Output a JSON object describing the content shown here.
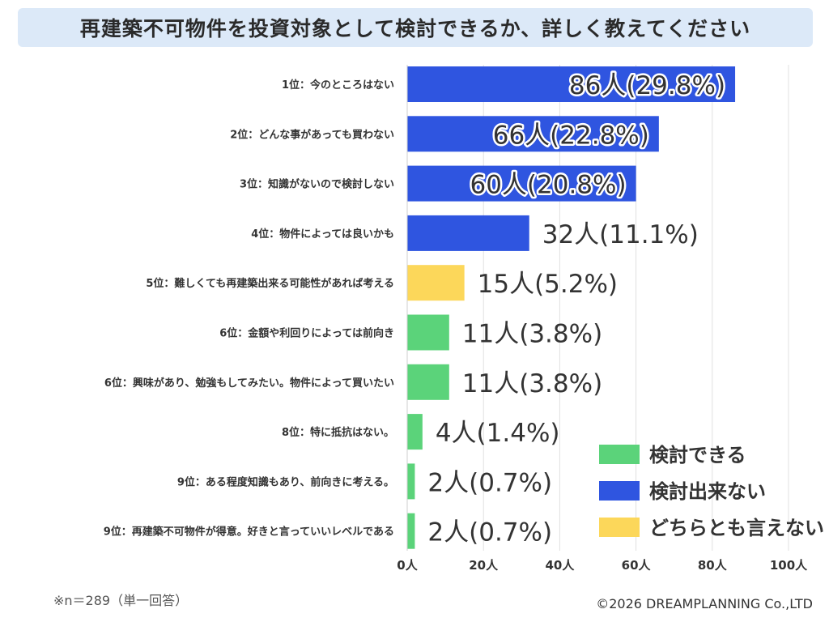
{
  "title": "再建築不可物件を投資対象として検討できるか、詳しく教えてください",
  "note": "※n＝289（単一回答）",
  "copyright": "©2026 DREAMPLANNING Co.,LTD",
  "colors": {
    "検討できる": "#5bd37a",
    "検討出来ない": "#2f55e0",
    "どちらとも言えない": "#fcd75a"
  },
  "chart_data": {
    "type": "bar",
    "orientation": "horizontal",
    "categories": [
      "1位：今のところはない",
      "2位：どんな事があっても買わない",
      "3位：知識がないので検討しない",
      "4位：物件によっては良いかも",
      "5位：難しくても再建築出来る可能性があれば考える",
      "6位：金額や利回りによっては前向き",
      "6位：興味があり、勉強もしてみたい。物件によって買いたい",
      "8位：特に抵抗はない。",
      "9位：ある程度知識もあり、前向きに考える。",
      "9位：再建築不可物件が得意。好きと言っていいレベルである"
    ],
    "values": [
      86,
      66,
      60,
      32,
      15,
      11,
      11,
      4,
      2,
      2
    ],
    "value_labels": [
      "86人(29.8%)",
      "66人(22.8%)",
      "60人(20.8%)",
      "32人(11.1%)",
      "15人(5.2%)",
      "11人(3.8%)",
      "11人(3.8%)",
      "4人(1.4%)",
      "2人(0.7%)",
      "2人(0.7%)"
    ],
    "groups": [
      "検討出来ない",
      "検討出来ない",
      "検討出来ない",
      "検討出来ない",
      "どちらとも言えない",
      "検討できる",
      "検討できる",
      "検討できる",
      "検討できる",
      "検討できる"
    ],
    "xlim": [
      0,
      100
    ],
    "xticks": [
      "0人",
      "20人",
      "40人",
      "60人",
      "80人",
      "100人"
    ],
    "xtick_values": [
      0,
      20,
      40,
      60,
      80,
      100
    ],
    "grid": true,
    "legend": [
      "検討できる",
      "検討出来ない",
      "どちらとも言えない"
    ],
    "legend_position": "bottom-right"
  }
}
